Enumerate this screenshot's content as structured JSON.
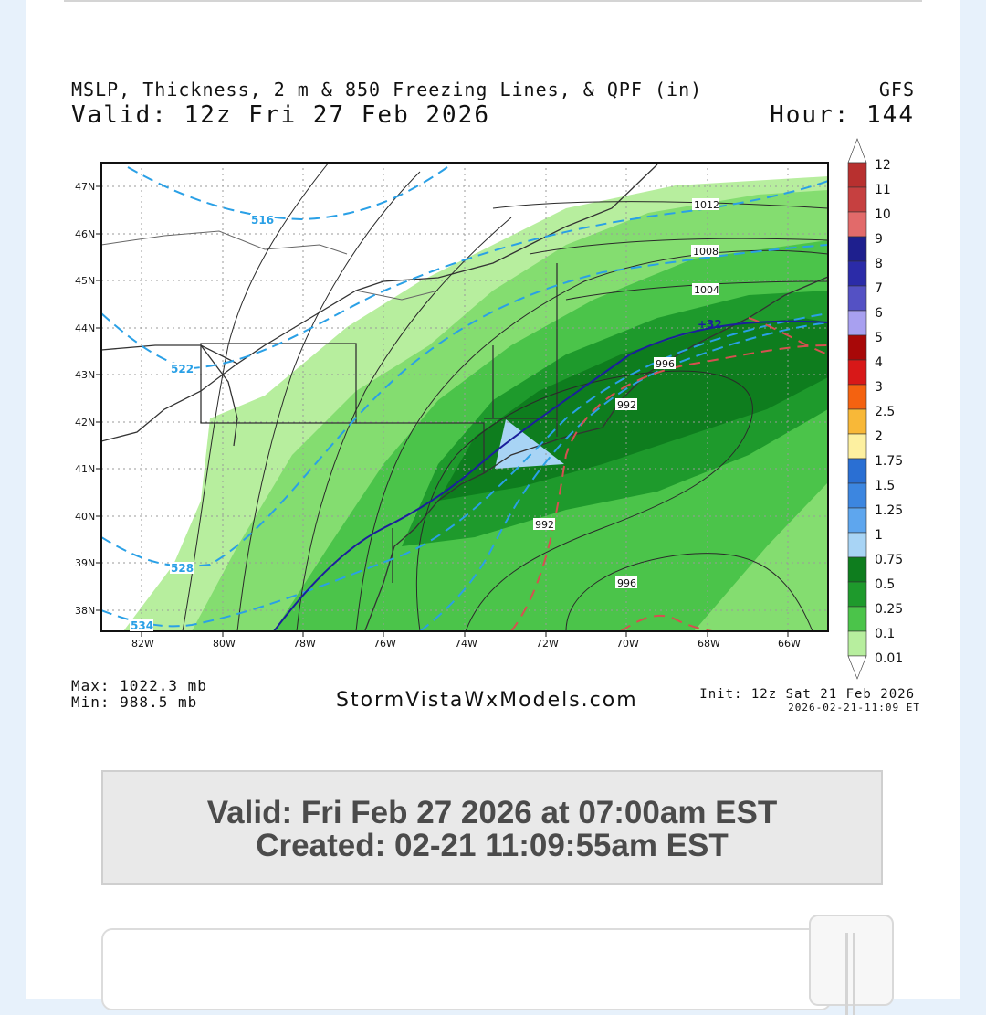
{
  "header": {
    "title": "MSLP, Thickness, 2 m & 850 Freezing Lines, & QPF (in)",
    "model": "GFS",
    "valid": "Valid: 12z Fri 27 Feb 2026",
    "hour": "Hour: 144"
  },
  "footer": {
    "max": "Max: 1022.3 mb",
    "min": "Min: 988.5 mb",
    "brand": "StormVistaWxModels.com",
    "init": "Init: 12z Sat 21 Feb 2026",
    "created_stamp": "2026-02-21-11:09 ET"
  },
  "map": {
    "lat_labels": [
      "47N",
      "46N",
      "45N",
      "44N",
      "43N",
      "42N",
      "41N",
      "40N",
      "39N",
      "38N"
    ],
    "lon_labels": [
      "82W",
      "80W",
      "78W",
      "76W",
      "74W",
      "72W",
      "70W",
      "68W",
      "66W"
    ],
    "isobar_labels": [
      "1012",
      "1008",
      "1004",
      "996",
      "992",
      "992",
      "996"
    ],
    "thickness_labels": [
      "516",
      "522",
      "528",
      "534"
    ],
    "freezing_label": "+32",
    "colors": {
      "qpf_0_01": "#b7ee9e",
      "qpf_0_1": "#84dd70",
      "qpf_0_25": "#4bc44a",
      "qpf_0_5": "#1e9a2c",
      "qpf_0_75": "#0e7d1e",
      "qpf_1": "#a8d4f5",
      "thickness": "#2aa0e6",
      "freezing_2m": "#1b1f9c",
      "freezing_850": "#d65050",
      "isobar": "#2a2a2a"
    }
  },
  "legend": {
    "levels": [
      "12",
      "11",
      "10",
      "9",
      "8",
      "7",
      "6",
      "5",
      "4",
      "3",
      "2.5",
      "2",
      "1.75",
      "1.5",
      "1.25",
      "1",
      "0.75",
      "0.5",
      "0.25",
      "0.1",
      "0.01"
    ],
    "colors": [
      "#b8302f",
      "#c64040",
      "#e26a6a",
      "#1e1f8e",
      "#2b2ba8",
      "#5451c4",
      "#a8a0f0",
      "#a80808",
      "#d81818",
      "#f46210",
      "#f8b838",
      "#fdf0a0",
      "#2a6fd3",
      "#3c86e0",
      "#5ea6ee",
      "#a8d4f5",
      "#0e7d1e",
      "#1e9a2c",
      "#4bc44a",
      "#84dd70",
      "#b7ee9e"
    ]
  },
  "info": {
    "valid_line": "Valid: Fri Feb 27 2026 at 07:00am EST",
    "created_line": "Created: 02-21 11:09:55am EST"
  }
}
